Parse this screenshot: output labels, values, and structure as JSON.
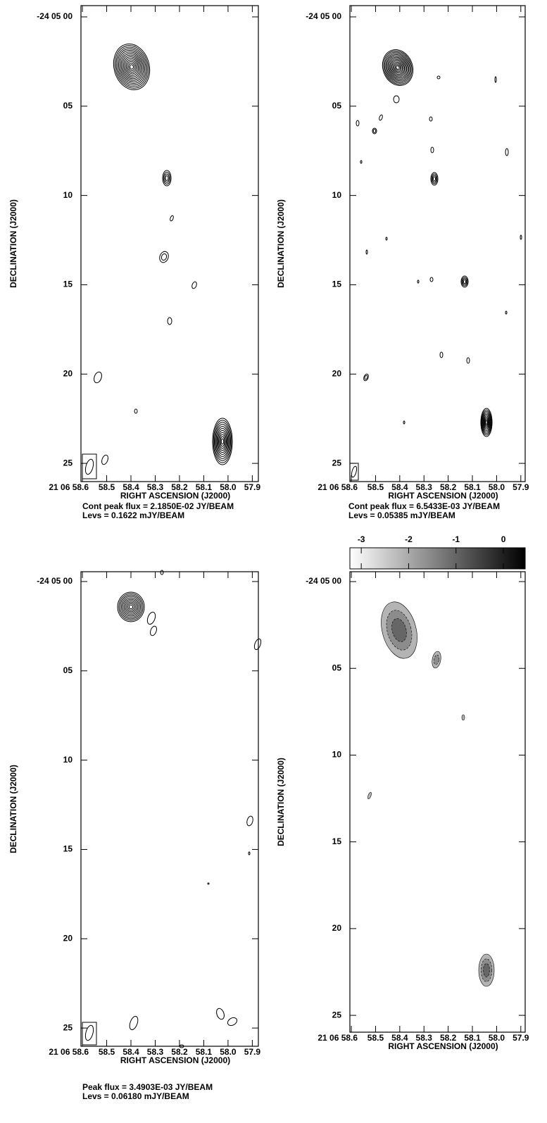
{
  "chart_data": [
    {
      "type": "contour",
      "xlabel": "RIGHT ASCENSION (J2000)",
      "ylabel": "DECLINATION (J2000)",
      "xlim": [
        58.606,
        57.875
      ],
      "ylim": [
        -0.63,
        26.02
      ],
      "xticks": [
        {
          "value": 58.6,
          "label": "21 06 58.6"
        },
        58.5,
        58.4,
        58.3,
        58.2,
        58.1,
        {
          "value": 58.0,
          "label": "58.0"
        },
        57.9
      ],
      "yticks": [
        {
          "value": 0,
          "label": "-24 05 00"
        },
        {
          "value": 5,
          "label": "05"
        },
        10,
        15,
        20,
        25
      ],
      "annotations": [
        "Cont peak flux =  2.1850E-02 JY/BEAM",
        "Levs =  0.1622 mJY/BEAM"
      ]
    },
    {
      "type": "contour",
      "xlabel": "RIGHT ASCENSION (J2000)",
      "ylabel": "DECLINATION (J2000)",
      "xlim": [
        58.606,
        57.882
      ],
      "ylim": [
        -0.63,
        26.02
      ],
      "xticks": [
        {
          "value": 58.6,
          "label": "21 06 58.6"
        },
        58.5,
        58.4,
        58.3,
        58.2,
        58.1,
        {
          "value": 58.0,
          "label": "58.0"
        },
        57.9
      ],
      "yticks": [
        {
          "value": 0,
          "label": "-24 05 00"
        },
        {
          "value": 5,
          "label": "05"
        },
        10,
        15,
        20,
        25
      ],
      "annotations": [
        "Cont peak flux =  6.5433E-03 JY/BEAM",
        "Levs = 0.05385 mJY/BEAM"
      ]
    },
    {
      "type": "contour",
      "xlabel": "RIGHT ASCENSION (J2000)",
      "ylabel": "DECLINATION (J2000)",
      "xlim": [
        58.606,
        57.875
      ],
      "ylim": [
        -0.55,
        26.02
      ],
      "xticks": [
        {
          "value": 58.6,
          "label": "21 06 58.6"
        },
        58.5,
        58.4,
        58.3,
        58.2,
        58.1,
        {
          "value": 58.0,
          "label": "58.0"
        },
        57.9
      ],
      "yticks": [
        {
          "value": 0,
          "label": "-24 05 00"
        },
        {
          "value": 5,
          "label": "05"
        },
        10,
        15,
        20,
        25
      ],
      "annotations": [
        "Peak flux =  3.4903E-03 JY/BEAM",
        "Levs =  0.06180 mJY/BEAM"
      ]
    },
    {
      "type": "contour",
      "xlabel": "RIGHT ASCENSION (J2000)",
      "ylabel": "DECLINATION (J2000)",
      "xlim": [
        58.606,
        57.882
      ],
      "ylim": [
        -0.57,
        25.97
      ],
      "xticks": [
        {
          "value": 58.6,
          "label": "21 06 58.6"
        },
        58.5,
        58.4,
        58.3,
        58.2,
        58.1,
        {
          "value": 58.0,
          "label": "58.0"
        },
        57.9
      ],
      "yticks": [
        {
          "value": 0,
          "label": "-24 05 00"
        },
        {
          "value": 5,
          "label": "05"
        },
        10,
        15,
        20,
        25
      ],
      "colorbar": {
        "lim": [
          -3.24,
          0.46
        ],
        "ticks": [
          -3,
          -2,
          -1,
          0
        ]
      }
    }
  ]
}
